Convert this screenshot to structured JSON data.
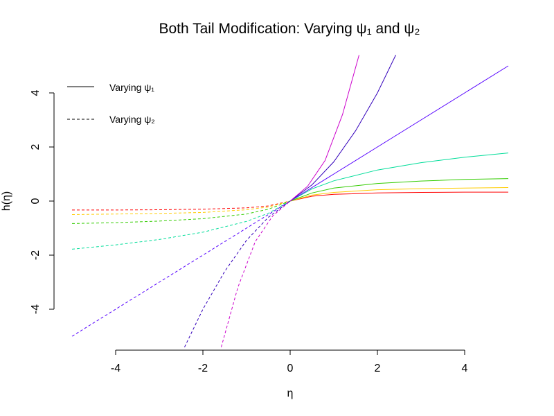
{
  "chart_data": {
    "type": "line",
    "title": "Both Tail Modification: Varying ψ₁ and ψ₂",
    "xlabel": "η",
    "ylabel": "h(η)",
    "xlim": [
      -5.25,
      5.5
    ],
    "ylim": [
      -5.4,
      5.5
    ],
    "xticks": [
      -4,
      -2,
      0,
      2,
      4
    ],
    "yticks": [
      -4,
      -2,
      0,
      2,
      4
    ],
    "xtick_labels": [
      "-4",
      "-2",
      "0",
      "2",
      "4"
    ],
    "ytick_labels": [
      "-4",
      "-2",
      "0",
      "2",
      "4"
    ],
    "legend": {
      "position": "top-left",
      "entries": [
        {
          "label": "Varying ψ₁",
          "linestyle": "solid"
        },
        {
          "label": "Varying ψ₂",
          "linestyle": "dashed"
        }
      ]
    },
    "series": [
      {
        "side": "right",
        "linestyle": "solid",
        "color": "#ff0000",
        "x": [
          0,
          0.5,
          1,
          2,
          3,
          4,
          5
        ],
        "y": [
          0,
          0.18,
          0.25,
          0.3,
          0.32,
          0.33,
          0.33
        ]
      },
      {
        "side": "right",
        "linestyle": "solid",
        "color": "#ffcc00",
        "x": [
          0,
          0.5,
          1,
          2,
          3,
          4,
          5
        ],
        "y": [
          0,
          0.22,
          0.32,
          0.42,
          0.46,
          0.48,
          0.5
        ]
      },
      {
        "side": "right",
        "linestyle": "solid",
        "color": "#33cc00",
        "x": [
          0,
          0.5,
          1,
          2,
          3,
          4,
          5
        ],
        "y": [
          0,
          0.3,
          0.48,
          0.65,
          0.74,
          0.8,
          0.83
        ]
      },
      {
        "side": "right",
        "linestyle": "solid",
        "color": "#00dd99",
        "x": [
          0,
          0.5,
          1,
          2,
          3,
          4,
          5
        ],
        "y": [
          0,
          0.45,
          0.75,
          1.15,
          1.42,
          1.62,
          1.78
        ]
      },
      {
        "side": "right",
        "linestyle": "solid",
        "color": "#5500ff",
        "x": [
          0,
          1,
          2,
          3,
          4,
          5
        ],
        "y": [
          0,
          1,
          2,
          3,
          4,
          5
        ]
      },
      {
        "side": "right",
        "linestyle": "solid",
        "color": "#3300bb",
        "x": [
          0,
          0.5,
          1,
          1.5,
          2,
          2.42
        ],
        "y": [
          0,
          0.6,
          1.45,
          2.6,
          4.0,
          5.4
        ]
      },
      {
        "side": "right",
        "linestyle": "solid",
        "color": "#cc00cc",
        "x": [
          0,
          0.4,
          0.8,
          1.2,
          1.58
        ],
        "y": [
          0,
          0.55,
          1.5,
          3.2,
          5.4
        ]
      },
      {
        "side": "left",
        "linestyle": "dashed",
        "color": "#ff0000",
        "x": [
          -5,
          -4,
          -3,
          -2,
          -1,
          -0.5,
          0
        ],
        "y": [
          -0.33,
          -0.33,
          -0.32,
          -0.3,
          -0.25,
          -0.18,
          0
        ]
      },
      {
        "side": "left",
        "linestyle": "dashed",
        "color": "#ffcc00",
        "x": [
          -5,
          -4,
          -3,
          -2,
          -1,
          -0.5,
          0
        ],
        "y": [
          -0.5,
          -0.48,
          -0.46,
          -0.42,
          -0.32,
          -0.22,
          0
        ]
      },
      {
        "side": "left",
        "linestyle": "dashed",
        "color": "#33cc00",
        "x": [
          -5,
          -4,
          -3,
          -2,
          -1,
          -0.5,
          0
        ],
        "y": [
          -0.83,
          -0.8,
          -0.74,
          -0.65,
          -0.48,
          -0.3,
          0
        ]
      },
      {
        "side": "left",
        "linestyle": "dashed",
        "color": "#00dd99",
        "x": [
          -5,
          -4,
          -3,
          -2,
          -1,
          -0.5,
          0
        ],
        "y": [
          -1.78,
          -1.62,
          -1.42,
          -1.15,
          -0.75,
          -0.45,
          0
        ]
      },
      {
        "side": "left",
        "linestyle": "dashed",
        "color": "#5500ff",
        "x": [
          -5,
          -4,
          -3,
          -2,
          -1,
          0
        ],
        "y": [
          -5,
          -4,
          -3,
          -2,
          -1,
          0
        ]
      },
      {
        "side": "left",
        "linestyle": "dashed",
        "color": "#3300bb",
        "x": [
          -2.42,
          -2,
          -1.5,
          -1,
          -0.5,
          0
        ],
        "y": [
          -5.4,
          -4.0,
          -2.6,
          -1.45,
          -0.6,
          0
        ]
      },
      {
        "side": "left",
        "linestyle": "dashed",
        "color": "#cc00cc",
        "x": [
          -1.58,
          -1.2,
          -0.8,
          -0.4,
          0
        ],
        "y": [
          -5.4,
          -3.2,
          -1.5,
          -0.55,
          0
        ]
      }
    ]
  }
}
